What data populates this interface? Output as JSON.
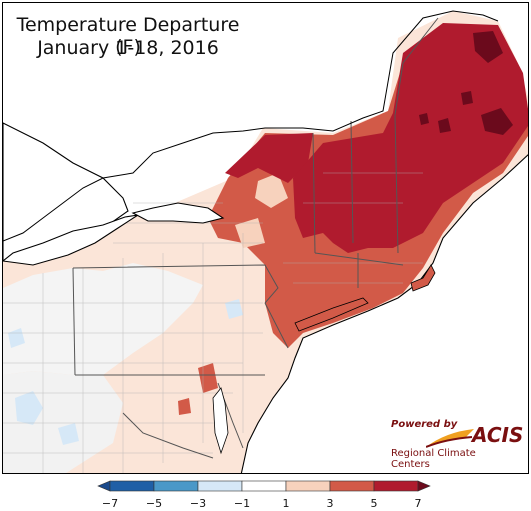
{
  "title": {
    "line1": "Temperature Departure (F)",
    "line2": "January 1-18, 2016"
  },
  "logo": {
    "powered_by": "Powered by",
    "name": "ACIS",
    "org": "Regional Climate Centers"
  },
  "legend": {
    "tick_labels": [
      "−7",
      "−5",
      "−3",
      "−1",
      "1",
      "3",
      "5",
      "7"
    ],
    "bins": [
      {
        "range": "-7 to -5",
        "color": "#1f5fa6"
      },
      {
        "range": "-5 to -3",
        "color": "#4a98c8"
      },
      {
        "range": "-3 to -1",
        "color": "#d6e8f7"
      },
      {
        "range": "-1 to 1",
        "color": "#ffffff"
      },
      {
        "range": "1 to 3",
        "color": "#f7d2bd"
      },
      {
        "range": "3 to 5",
        "color": "#d25a48"
      },
      {
        "range": "5 to 7",
        "color": "#b01b2e"
      }
    ],
    "below_color": "#1a4a8c",
    "above_color": "#6b0a1c"
  },
  "colors": {
    "water": "#ffffff",
    "county_lines": "#b0b0b0",
    "state_lines": "#555555",
    "coast": "#000000"
  }
}
